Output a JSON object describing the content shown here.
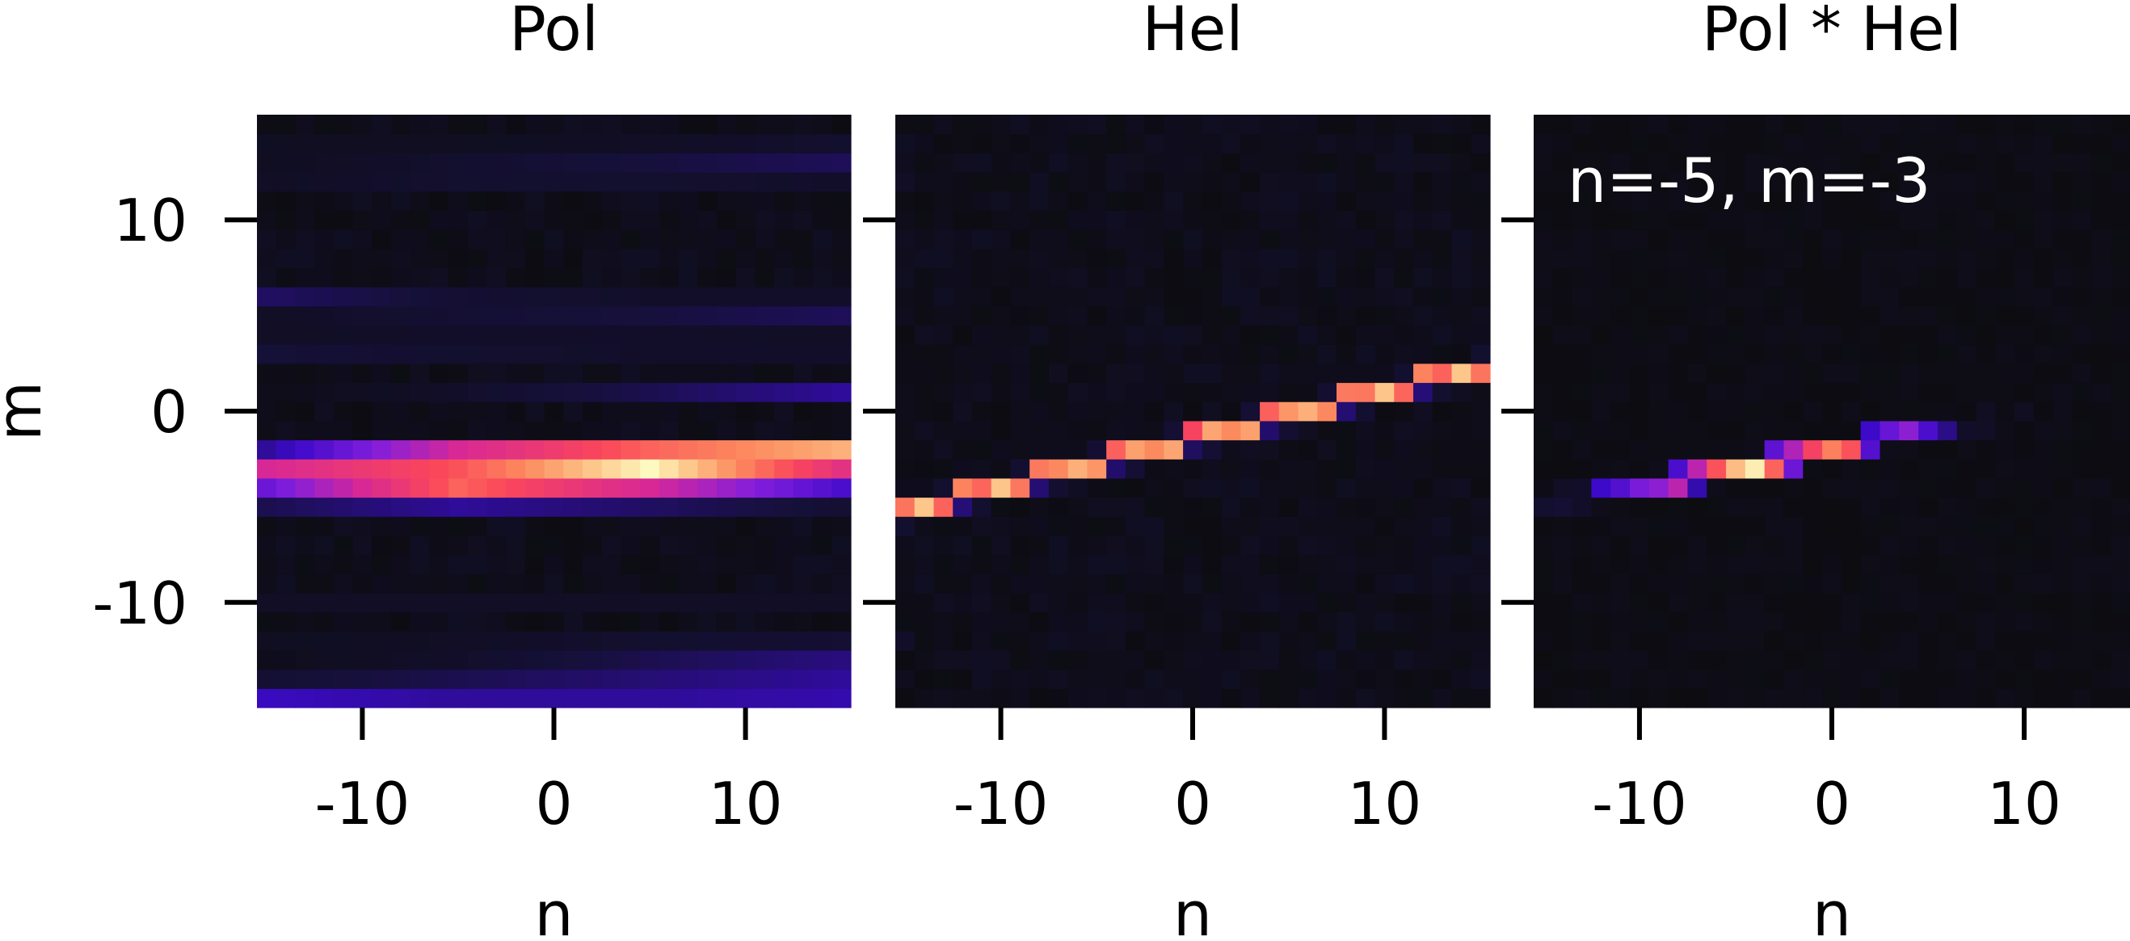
{
  "chart_data": [
    {
      "type": "heatmap",
      "title": "Pol",
      "xlabel": "n",
      "ylabel": "m",
      "xlim": [
        -15.5,
        15.5
      ],
      "ylim": [
        -15.5,
        15.5
      ],
      "xticks": [
        -10,
        0,
        10
      ],
      "yticks": [
        -10,
        0,
        10
      ],
      "pattern": "horizontal_bands",
      "bands": [
        {
          "m": -3,
          "intensity": [
            0.55,
            0.72,
            1.0,
            0.6
          ]
        },
        {
          "m": -4,
          "intensity": [
            0.35,
            0.75,
            0.55,
            0.28
          ]
        },
        {
          "m": -2,
          "intensity": [
            0.2,
            0.55,
            0.75,
            0.88
          ]
        },
        {
          "m": -5,
          "intensity": [
            0.12,
            0.2,
            0.14,
            0.08
          ]
        },
        {
          "m": -15,
          "intensity": [
            0.24,
            0.2,
            0.2,
            0.22
          ]
        },
        {
          "m": -14,
          "intensity": [
            0.08,
            0.12,
            0.16,
            0.2
          ]
        },
        {
          "m": -13,
          "intensity": [
            0.03,
            0.06,
            0.12,
            0.17
          ]
        },
        {
          "m": 1,
          "intensity": [
            0.02,
            0.06,
            0.12,
            0.2
          ]
        },
        {
          "m": 6,
          "intensity": [
            0.14,
            0.08,
            0.06,
            0.06
          ]
        },
        {
          "m": 5,
          "intensity": [
            0.05,
            0.08,
            0.1,
            0.13
          ]
        },
        {
          "m": 3,
          "intensity": [
            0.09,
            0.07,
            0.06,
            0.06
          ]
        },
        {
          "m": 4,
          "intensity": [
            0.05,
            0.06,
            0.06,
            0.05
          ]
        },
        {
          "m": 13,
          "intensity": [
            0.04,
            0.07,
            0.1,
            0.13
          ]
        },
        {
          "m": 12,
          "intensity": [
            0.05,
            0.07,
            0.07,
            0.06
          ]
        },
        {
          "m": 14,
          "intensity": [
            0.04,
            0.04,
            0.05,
            0.07
          ]
        },
        {
          "m": -10,
          "intensity": [
            0.05,
            0.05,
            0.05,
            0.05
          ]
        },
        {
          "m": -12,
          "intensity": [
            0.04,
            0.05,
            0.07,
            0.08
          ]
        }
      ]
    },
    {
      "type": "heatmap",
      "title": "Hel",
      "xlabel": "n",
      "xlim": [
        -15.5,
        15.5
      ],
      "ylim": [
        -15.5,
        15.5
      ],
      "xticks": [
        -10,
        0,
        10
      ],
      "yticks": [
        -10,
        0,
        10
      ],
      "pattern": "diagonal_line",
      "line": {
        "slope": 0.25,
        "intercept": -1.5,
        "intensity": 0.92
      },
      "sparse": [
        {
          "n": -15,
          "m": -12,
          "v": 0.06
        },
        {
          "n": -15,
          "m": 12,
          "v": 0.05
        },
        {
          "n": -12,
          "m": 13,
          "v": 0.04
        },
        {
          "n": -5,
          "m": 15,
          "v": 0.04
        },
        {
          "n": 14,
          "m": 8,
          "v": 0.04
        },
        {
          "n": -8,
          "m": -10,
          "v": 0.04
        },
        {
          "n": 5,
          "m": 6,
          "v": 0.03
        }
      ]
    },
    {
      "type": "heatmap",
      "title": "Pol * Hel",
      "xlabel": "n",
      "xlim": [
        -15.5,
        15.5
      ],
      "ylim": [
        -15.5,
        15.5
      ],
      "xticks": [
        -10,
        0,
        10
      ],
      "yticks": [
        -10,
        0,
        10
      ],
      "annotation": "n=-5, m=-3",
      "pattern": "segment",
      "cells": [
        {
          "n": -15,
          "m": -5,
          "v": 0.07
        },
        {
          "n": -14,
          "m": -5,
          "v": 0.08
        },
        {
          "n": -13,
          "m": -5,
          "v": 0.06
        },
        {
          "n": -14,
          "m": -4,
          "v": 0.05
        },
        {
          "n": -13,
          "m": -4,
          "v": 0.06
        },
        {
          "n": -12,
          "m": -4,
          "v": 0.25
        },
        {
          "n": -11,
          "m": -4,
          "v": 0.3
        },
        {
          "n": -10,
          "m": -4,
          "v": 0.38
        },
        {
          "n": -9,
          "m": -4,
          "v": 0.42
        },
        {
          "n": -8,
          "m": -4,
          "v": 0.5
        },
        {
          "n": -7,
          "m": -4,
          "v": 0.22
        },
        {
          "n": -8,
          "m": -3,
          "v": 0.28
        },
        {
          "n": -7,
          "m": -3,
          "v": 0.5
        },
        {
          "n": -6,
          "m": -3,
          "v": 0.72
        },
        {
          "n": -5,
          "m": -3,
          "v": 0.9
        },
        {
          "n": -4,
          "m": -3,
          "v": 0.98
        },
        {
          "n": -3,
          "m": -3,
          "v": 0.75
        },
        {
          "n": -2,
          "m": -3,
          "v": 0.35
        },
        {
          "n": -3,
          "m": -2,
          "v": 0.32
        },
        {
          "n": -2,
          "m": -2,
          "v": 0.48
        },
        {
          "n": -1,
          "m": -2,
          "v": 0.68
        },
        {
          "n": 0,
          "m": -2,
          "v": 0.8
        },
        {
          "n": 1,
          "m": -2,
          "v": 0.72
        },
        {
          "n": 2,
          "m": -2,
          "v": 0.3
        },
        {
          "n": 2,
          "m": -1,
          "v": 0.25
        },
        {
          "n": 3,
          "m": -1,
          "v": 0.34
        },
        {
          "n": 4,
          "m": -1,
          "v": 0.42
        },
        {
          "n": 5,
          "m": -1,
          "v": 0.28
        },
        {
          "n": 6,
          "m": -1,
          "v": 0.18
        },
        {
          "n": 7,
          "m": -1,
          "v": 0.06
        },
        {
          "n": 8,
          "m": -1,
          "v": 0.05
        },
        {
          "n": 8,
          "m": 0,
          "v": 0.04
        },
        {
          "n": 10,
          "m": 0,
          "v": 0.04
        },
        {
          "n": 12,
          "m": 1,
          "v": 0.03
        }
      ]
    }
  ]
}
